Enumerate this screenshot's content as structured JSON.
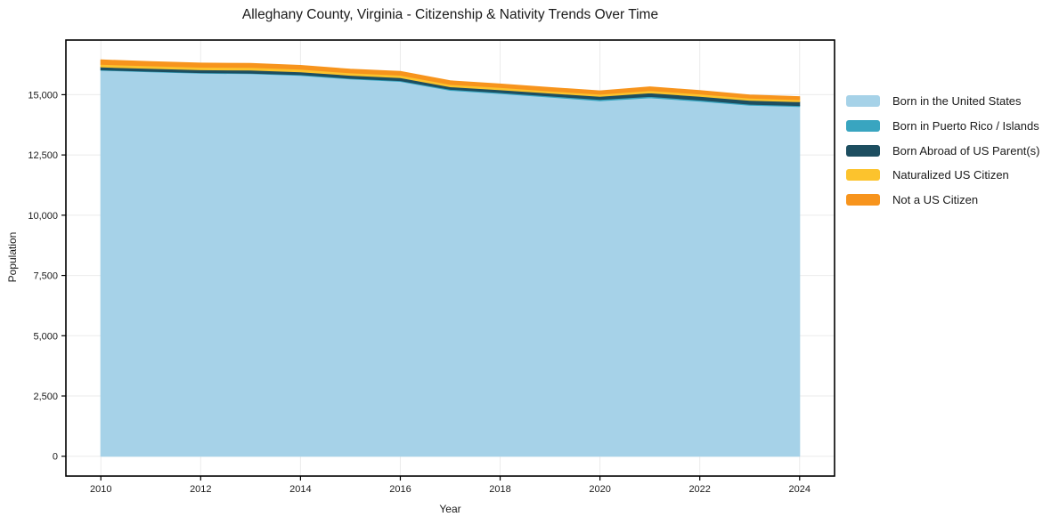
{
  "chart_data": {
    "type": "area",
    "stacked": true,
    "title": "Alleghany County, Virginia - Citizenship & Nativity Trends Over Time",
    "xlabel": "Year",
    "ylabel": "Population",
    "x": [
      2010,
      2011,
      2012,
      2013,
      2014,
      2015,
      2016,
      2017,
      2018,
      2019,
      2020,
      2021,
      2022,
      2023,
      2024
    ],
    "series": [
      {
        "id": "born-in-us",
        "name": "Born in the United States",
        "color": "#a6d2e8",
        "values": [
          16010,
          15950,
          15890,
          15870,
          15800,
          15650,
          15550,
          15180,
          15050,
          14900,
          14750,
          14870,
          14730,
          14560,
          14510
        ]
      },
      {
        "id": "born-in-puerto-rico-islands",
        "name": "Born in Puerto Rico / Islands",
        "color": "#39a5c0",
        "values": [
          20,
          20,
          25,
          25,
          30,
          30,
          35,
          40,
          40,
          45,
          50,
          55,
          50,
          45,
          40
        ]
      },
      {
        "id": "born-abroad-us-parents",
        "name": "Born Abroad of US Parent(s)",
        "color": "#1d4e60",
        "values": [
          120,
          120,
          120,
          125,
          120,
          125,
          120,
          110,
          115,
          120,
          130,
          150,
          155,
          160,
          160
        ]
      },
      {
        "id": "naturalized-us-citizen",
        "name": "Naturalized US Citizen",
        "color": "#fcc32d",
        "values": [
          110,
          105,
          105,
          110,
          105,
          100,
          105,
          95,
          95,
          90,
          90,
          100,
          95,
          90,
          85
        ]
      },
      {
        "id": "not-a-us-citizen",
        "name": "Not a US Citizen",
        "color": "#f7941d",
        "values": [
          185,
          175,
          170,
          165,
          160,
          150,
          155,
          150,
          145,
          140,
          140,
          150,
          140,
          130,
          125
        ]
      }
    ],
    "xlim": [
      2009.3,
      2024.7
    ],
    "ylim": [
      -822,
      17267
    ],
    "xticks": [
      2010,
      2012,
      2014,
      2016,
      2018,
      2020,
      2022,
      2024
    ],
    "xticklabels": [
      "2010",
      "2012",
      "2014",
      "2016",
      "2018",
      "2020",
      "2022",
      "2024"
    ],
    "yticks": [
      0,
      2500,
      5000,
      7500,
      10000,
      12500,
      15000
    ],
    "yticklabels": [
      "0",
      "2,500",
      "5,000",
      "7,500",
      "10,000",
      "12,500",
      "15,000"
    ],
    "grid": true,
    "grid_color": "#ebebeb",
    "spine_color": "#000000",
    "text_color": "#1a1a1a",
    "background": "#ffffff",
    "legend_position": "right"
  }
}
